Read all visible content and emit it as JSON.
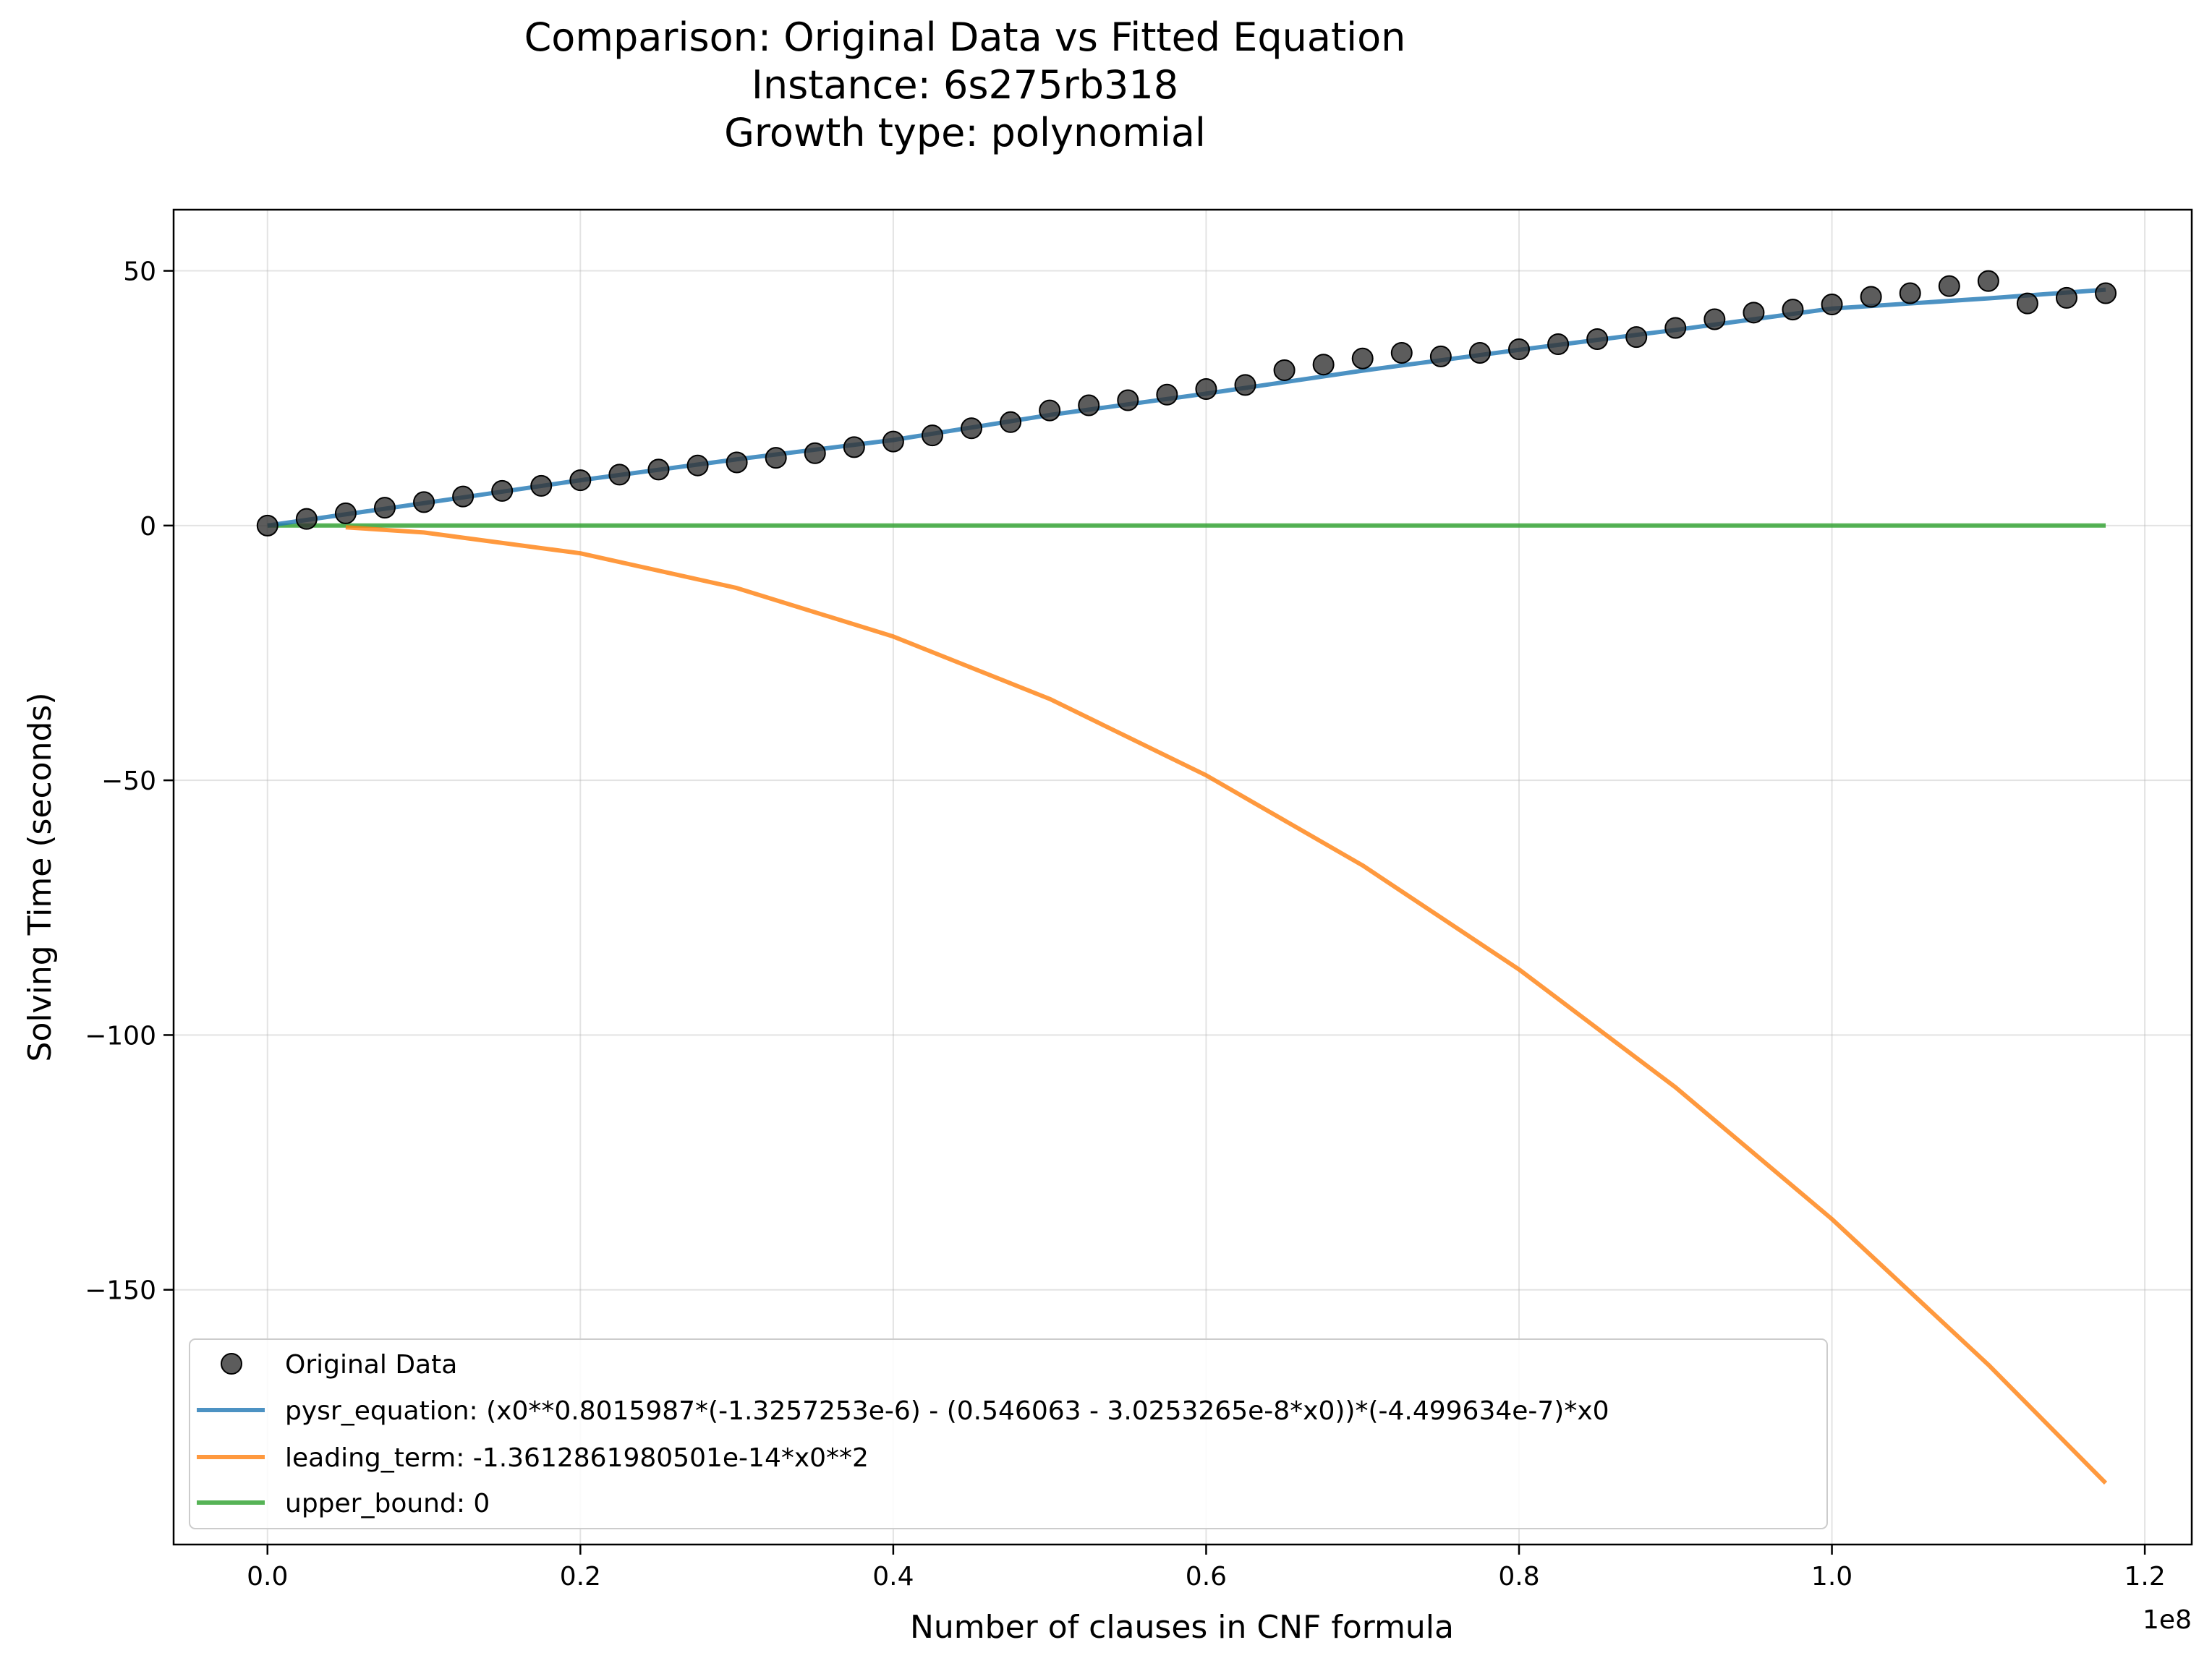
{
  "chart_data": {
    "type": "scatter",
    "title": [
      "Comparison: Original Data vs Fitted Equation",
      "Instance: 6s275rb318",
      "Growth type: polynomial"
    ],
    "xlabel": "Number of clauses in CNF formula",
    "ylabel": "Solving Time (seconds)",
    "x_offset_text": "1e8",
    "xlim": [
      -0.06,
      1.23
    ],
    "ylim": [
      -200,
      62
    ],
    "x_ticks": [
      0.0,
      0.2,
      0.4,
      0.6,
      0.8,
      1.0,
      1.2
    ],
    "x_tick_labels": [
      "0.0",
      "0.2",
      "0.4",
      "0.6",
      "0.8",
      "1.0",
      "1.2"
    ],
    "y_ticks": [
      50,
      0,
      -50,
      -100,
      -150
    ],
    "y_tick_labels": [
      "50",
      "0",
      "−50",
      "−100",
      "−150"
    ],
    "grid": true,
    "legend_position": "lower-left",
    "series": [
      {
        "name": "Original Data",
        "kind": "scatter",
        "color": "#333333",
        "x": [
          0.0,
          0.025,
          0.05,
          0.075,
          0.1,
          0.125,
          0.15,
          0.175,
          0.2,
          0.225,
          0.25,
          0.275,
          0.3,
          0.325,
          0.35,
          0.375,
          0.4,
          0.425,
          0.45,
          0.475,
          0.5,
          0.525,
          0.55,
          0.575,
          0.6,
          0.625,
          0.65,
          0.675,
          0.7,
          0.725,
          0.75,
          0.775,
          0.8,
          0.825,
          0.85,
          0.875,
          0.9,
          0.925,
          0.95,
          0.975,
          1.0,
          1.025,
          1.05,
          1.075,
          1.1,
          1.125,
          1.15,
          1.175
        ],
        "y": [
          0,
          1.3,
          2.4,
          3.5,
          4.6,
          5.7,
          6.8,
          7.8,
          8.9,
          10.0,
          11.0,
          11.8,
          12.4,
          13.3,
          14.2,
          15.4,
          16.5,
          17.7,
          19.1,
          20.3,
          22.6,
          23.6,
          24.6,
          25.7,
          26.8,
          27.6,
          30.5,
          31.6,
          32.8,
          33.9,
          33.2,
          33.9,
          34.6,
          35.6,
          36.6,
          37.0,
          38.8,
          40.5,
          41.8,
          42.4,
          43.4,
          44.9,
          45.6,
          47.0,
          48.0,
          43.6,
          44.7,
          45.6
        ]
      },
      {
        "name": "pysr_equation: (x0**0.8015987*(-1.3257253e-6) - (0.546063 - 3.0253265e-8*x0))*(-4.499634e-7)*x0",
        "kind": "line",
        "color": "#1f77b4",
        "x": [
          0.0,
          0.1,
          0.2,
          0.3,
          0.4,
          0.5,
          0.6,
          0.7,
          0.8,
          0.9,
          1.0,
          1.1,
          1.175
        ],
        "y": [
          0,
          4.4,
          8.9,
          13.0,
          16.8,
          21.7,
          25.9,
          30.4,
          34.5,
          38.4,
          42.6,
          44.6,
          46.3
        ]
      },
      {
        "name": "leading_term: -1.3612861980501e-14*x0**2",
        "kind": "line",
        "color": "#ff7f0e",
        "x": [
          0.05,
          0.1,
          0.2,
          0.3,
          0.4,
          0.5,
          0.6,
          0.7,
          0.8,
          0.9,
          1.0,
          1.1,
          1.175
        ],
        "y": [
          -0.34,
          -1.36,
          -5.45,
          -12.25,
          -21.78,
          -34.03,
          -49.01,
          -66.7,
          -87.12,
          -110.26,
          -136.13,
          -164.72,
          -187.94
        ]
      },
      {
        "name": "upper_bound: 0",
        "kind": "line",
        "color": "#2ca02c",
        "x": [
          0.0,
          1.175
        ],
        "y": [
          0,
          0
        ]
      }
    ]
  }
}
